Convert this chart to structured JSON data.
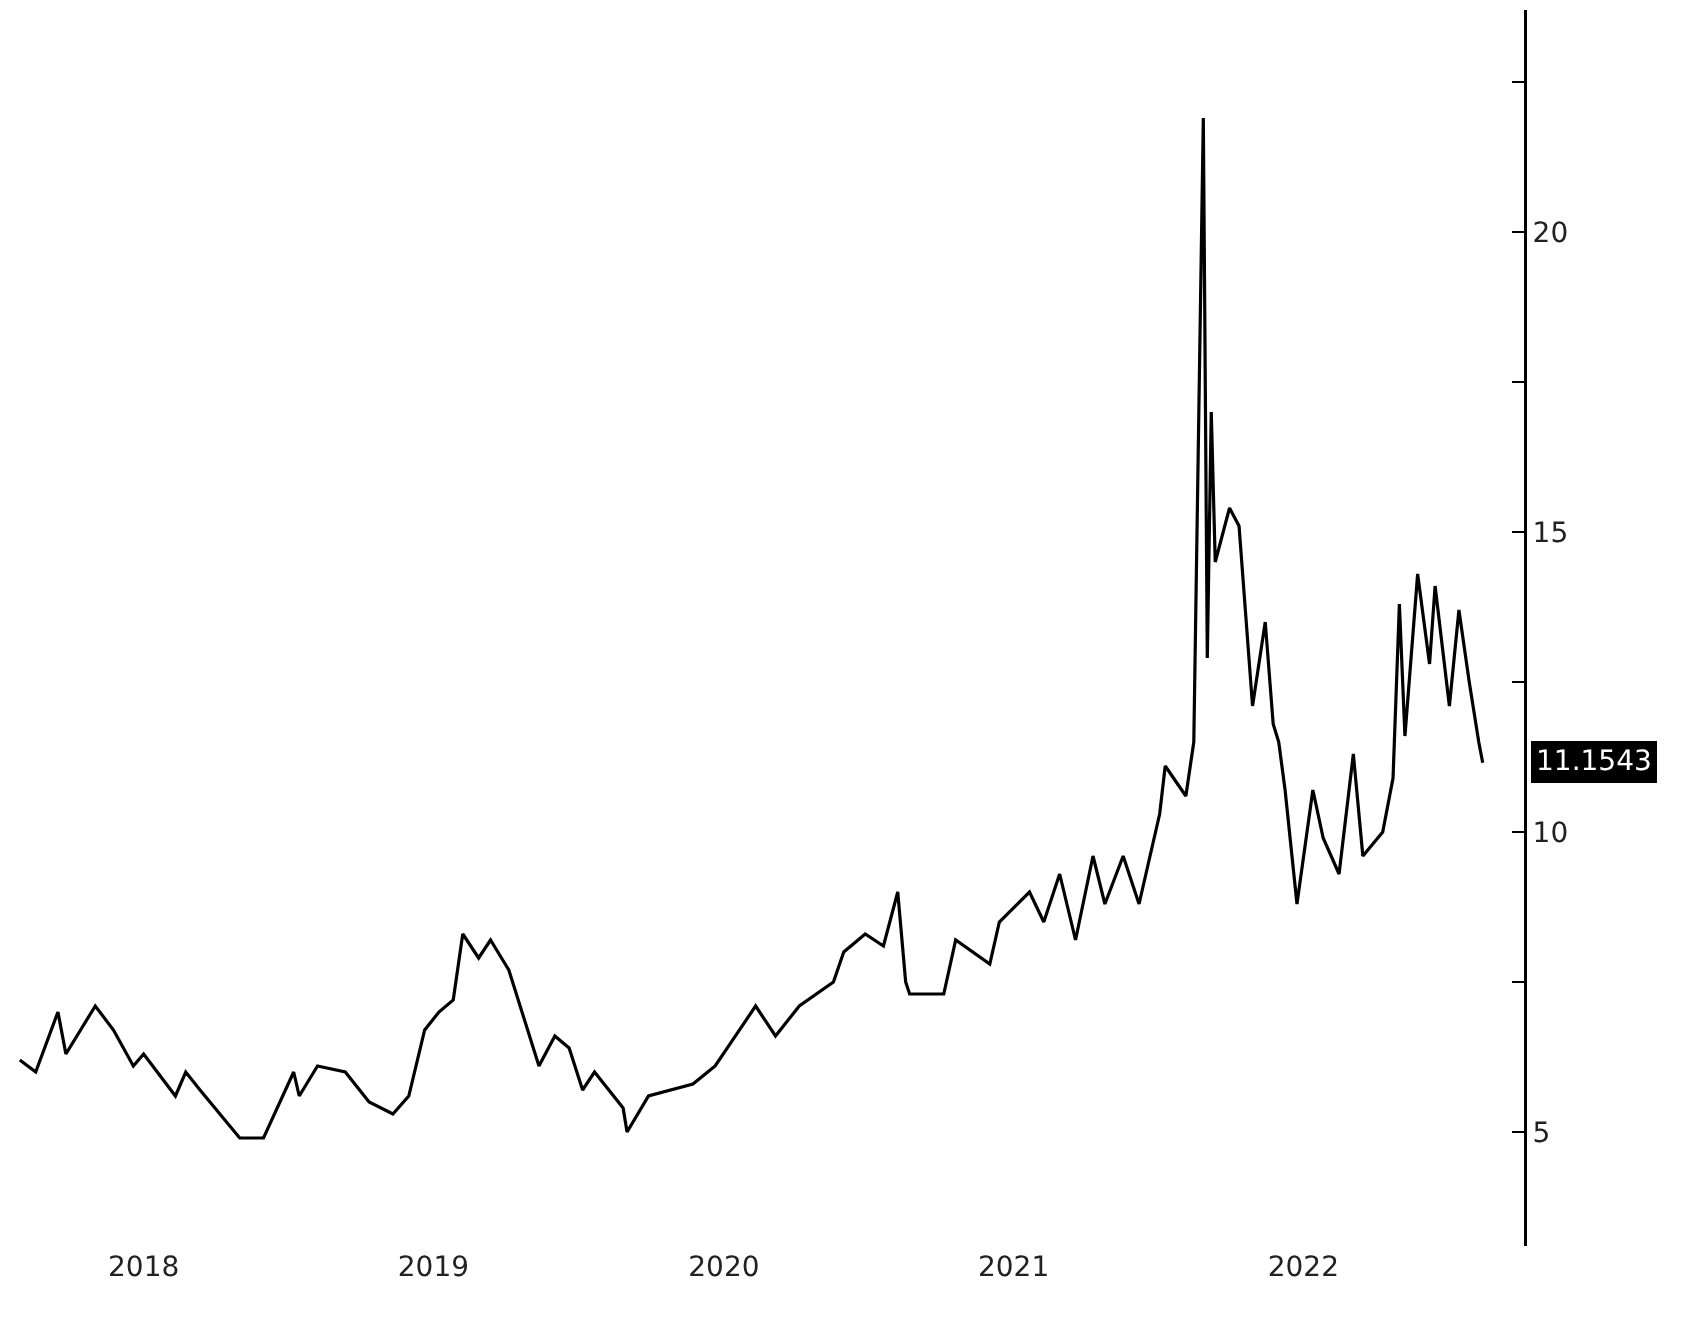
{
  "chart_data": {
    "type": "line",
    "x": [
      "2018-01-26",
      "2018-02-15",
      "2018-03-15",
      "2018-03-25",
      "2018-05-01",
      "2018-05-24",
      "2018-06-18",
      "2018-07-01",
      "2018-08-10",
      "2018-08-23",
      "2018-09-10",
      "2018-10-30",
      "2018-11-29",
      "2019-01-06",
      "2019-01-13",
      "2019-02-05",
      "2019-03-12",
      "2019-04-11",
      "2019-05-11",
      "2019-05-31",
      "2019-06-20",
      "2019-07-08",
      "2019-07-26",
      "2019-08-07",
      "2019-08-27",
      "2019-09-11",
      "2019-10-04",
      "2019-11-11",
      "2019-12-01",
      "2019-12-19",
      "2020-01-05",
      "2020-01-20",
      "2020-02-25",
      "2020-03-01",
      "2020-03-28",
      "2020-05-23",
      "2020-06-20",
      "2020-08-10",
      "2020-09-04",
      "2020-10-04",
      "2020-11-16",
      "2020-11-29",
      "2020-12-26",
      "2021-01-18",
      "2021-02-05",
      "2021-02-15",
      "2021-02-20",
      "2021-04-04",
      "2021-04-19",
      "2021-06-01",
      "2021-06-13",
      "2021-07-21",
      "2021-08-08",
      "2021-08-28",
      "2021-09-17",
      "2021-10-09",
      "2021-10-24",
      "2021-11-16",
      "2021-12-06",
      "2022-01-01",
      "2022-01-08",
      "2022-02-03",
      "2022-02-13",
      "2022-02-25",
      "2022-03-02",
      "2022-03-07",
      "2022-03-12",
      "2022-03-30",
      "2022-04-11",
      "2022-04-28",
      "2022-05-14",
      "2022-05-24",
      "2022-05-31",
      "2022-06-08",
      "2022-06-23",
      "2022-07-13",
      "2022-07-26",
      "2022-08-15",
      "2022-09-02",
      "2022-09-14",
      "2022-10-09",
      "2022-10-22",
      "2022-10-30",
      "2022-11-06",
      "2022-11-22",
      "2022-12-07",
      "2022-12-14",
      "2023-01-01",
      "2023-01-13",
      "2023-01-26",
      "2023-02-07",
      "2023-02-12"
    ],
    "series": [
      {
        "color": "#000000",
        "values": [
          6.2,
          6.0,
          7.0,
          6.3,
          7.1,
          6.7,
          6.1,
          6.3,
          5.6,
          6.0,
          5.7,
          4.9,
          4.9,
          6.0,
          5.6,
          6.1,
          6.0,
          5.5,
          5.3,
          5.6,
          6.7,
          7.0,
          7.2,
          8.3,
          7.9,
          8.2,
          7.7,
          6.1,
          6.6,
          6.4,
          5.7,
          6.0,
          5.4,
          5.0,
          5.6,
          5.8,
          6.1,
          7.1,
          6.6,
          7.1,
          7.5,
          8.0,
          8.3,
          8.1,
          9.0,
          7.5,
          7.3,
          7.3,
          8.2,
          7.8,
          8.5,
          9.0,
          8.5,
          9.3,
          8.2,
          9.6,
          8.8,
          9.6,
          8.8,
          10.3,
          11.1,
          10.6,
          11.5,
          21.9,
          12.9,
          17.0,
          14.5,
          15.4,
          15.1,
          12.1,
          13.5,
          11.8,
          11.5,
          10.7,
          8.8,
          10.7,
          9.9,
          9.3,
          11.3,
          9.6,
          10.0,
          10.9,
          13.8,
          11.6,
          14.3,
          12.8,
          14.1,
          12.1,
          13.7,
          12.5,
          11.5,
          11.1543
        ]
      }
    ],
    "xlim": [
      "2018-01-01",
      "2023-04-05"
    ],
    "xticks": [
      {
        "value": "2018-07-01",
        "label": "2018"
      },
      {
        "value": "2019-07-01",
        "label": "2019"
      },
      {
        "value": "2020-07-01",
        "label": "2020"
      },
      {
        "value": "2021-07-01",
        "label": "2021"
      },
      {
        "value": "2022-07-01",
        "label": "2022"
      }
    ],
    "ylim": [
      3.1,
      23.7
    ],
    "yticks": [
      5,
      {
        "value": 7.5,
        "label": null
      },
      10,
      {
        "value": 12.5,
        "label": null
      },
      15,
      {
        "value": 17.5,
        "label": null
      },
      20,
      {
        "value": 22.5,
        "label": null
      }
    ],
    "annotations": [
      {
        "text": "11.1543",
        "x": "2023-02-12",
        "y": 11.1543
      }
    ],
    "grid": false,
    "marker": "none",
    "line_style": "solid"
  }
}
